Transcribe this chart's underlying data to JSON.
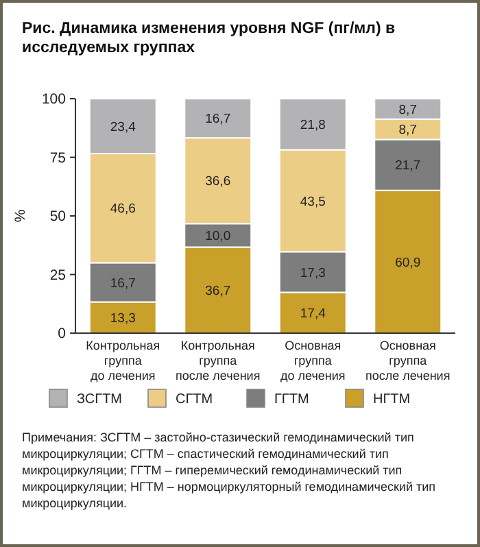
{
  "chart_data": {
    "type": "bar",
    "title": "Рис. Динамика изменения уровня NGF (пг/мл) в исследуемых группах",
    "ylabel": "%",
    "categories": [
      "Контрольная группа до лечения",
      "Контрольная группа после лечения",
      "Основная группа до лечения",
      "Основная группа после лечения"
    ],
    "stacked": true,
    "legend": "bottom",
    "grid": false,
    "ylim": [
      0,
      100
    ],
    "yticks": [
      0,
      25,
      50,
      75,
      100
    ],
    "series": [
      {
        "name": "НГТМ",
        "color": "#c9a02a",
        "values": [
          13.3,
          36.7,
          17.4,
          60.9
        ],
        "value_labels": [
          "13,3",
          "36,7",
          "17,4",
          "60,9"
        ]
      },
      {
        "name": "ГГТМ",
        "color": "#7d7d7d",
        "values": [
          16.7,
          10.0,
          17.3,
          21.7
        ],
        "value_labels": [
          "16,7",
          "10,0",
          "17,3",
          "21,7"
        ]
      },
      {
        "name": "СГТМ",
        "color": "#ebcd85",
        "values": [
          46.6,
          36.6,
          43.5,
          8.7
        ],
        "value_labels": [
          "46,6",
          "36,6",
          "43,5",
          "8,7"
        ]
      },
      {
        "name": "ЗСГТМ",
        "color": "#b3b3b5",
        "values": [
          23.4,
          16.7,
          21.8,
          8.7
        ],
        "value_labels": [
          "23,4",
          "16,7",
          "21,8",
          "8,7"
        ]
      }
    ],
    "annotations": [
      "Примечания: ЗСГТМ – застойно-стазический гемодинамический тип микроциркуляции; СГТМ – спастический гемодинамический тип микроциркуляции; ГГТМ – гиперемический гемодинамический тип микроциркуляции; НГТМ – нормоциркуляторный гемодинамический тип микроциркуляции."
    ]
  }
}
